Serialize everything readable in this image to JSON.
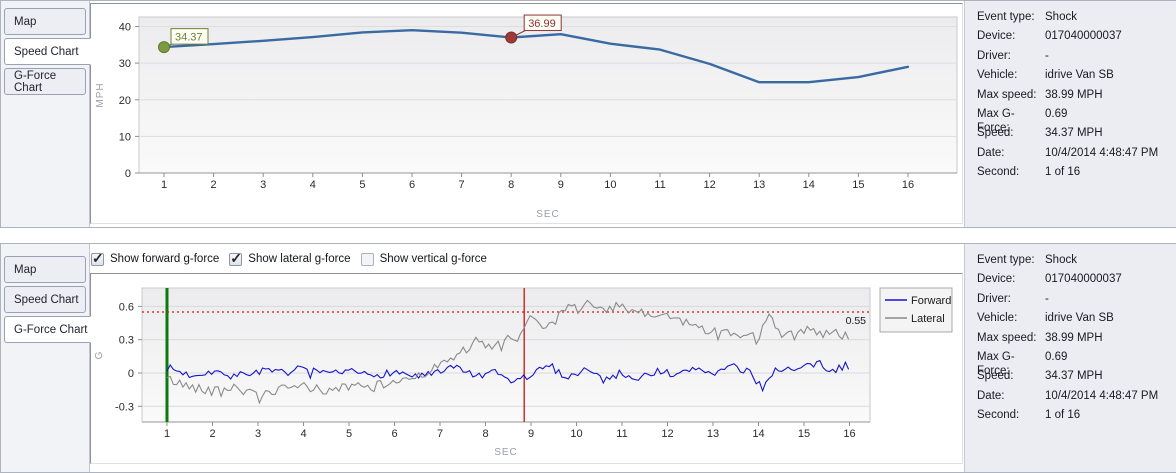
{
  "tabs": [
    "Map",
    "Speed Chart",
    "G-Force Chart"
  ],
  "panels": {
    "top": {
      "name": "speed-chart-panel",
      "active_tab": "Speed Chart"
    },
    "bottom": {
      "name": "gforce-chart-panel",
      "active_tab": "G-Force Chart"
    }
  },
  "checkboxes": [
    {
      "label": "Show forward g-force",
      "checked": true
    },
    {
      "label": "Show lateral g-force",
      "checked": true
    },
    {
      "label": "Show vertical g-force",
      "checked": false
    }
  ],
  "info": {
    "rows": [
      {
        "label": "Event type:",
        "value": "Shock"
      },
      {
        "label": "Device:",
        "value": "017040000037"
      },
      {
        "label": "Driver:",
        "value": "-"
      },
      {
        "label": "Vehicle:",
        "value": "idrive Van SB"
      },
      {
        "label": "Max speed:",
        "value": "38.99 MPH"
      },
      {
        "label": "Max G-Force:",
        "value": "0.69"
      },
      {
        "label": "Speed:",
        "value": "34.37 MPH"
      },
      {
        "label": "Date:",
        "value": "10/4/2014 4:48:47 PM"
      },
      {
        "label": "Second:",
        "value": "1 of 16"
      }
    ]
  },
  "chart_data": [
    {
      "type": "line",
      "title": "Speed Chart",
      "xlabel": "SEC",
      "ylabel": "MPH",
      "x": [
        1,
        2,
        3,
        4,
        5,
        6,
        7,
        8,
        9,
        10,
        11,
        12,
        13,
        14,
        15,
        16
      ],
      "values": [
        34.37,
        35.2,
        36.1,
        37.1,
        38.4,
        38.99,
        38.3,
        36.99,
        37.9,
        35.3,
        33.7,
        29.8,
        24.8,
        24.8,
        26.2,
        29.0
      ],
      "yticks": [
        0,
        10,
        20,
        30,
        40
      ],
      "ylim": [
        0,
        42.6
      ],
      "grid": true,
      "line_color": "#3a6aa4",
      "markers": [
        {
          "x": 1,
          "y": 34.37,
          "label": "34.37",
          "dot_color": "#7d9b40",
          "edge_color": "#5f7a28",
          "text_color": "#6f7f33"
        },
        {
          "x": 8,
          "y": 36.99,
          "label": "36.99",
          "dot_color": "#9c3a38",
          "edge_color": "#7e2d2c",
          "text_color": "#8b3332"
        }
      ]
    },
    {
      "type": "line",
      "title": "G-Force Chart",
      "xlabel": "SEC",
      "ylabel": "G",
      "xticks": [
        1,
        2,
        3,
        4,
        5,
        6,
        7,
        8,
        9,
        10,
        11,
        12,
        13,
        14,
        15,
        16
      ],
      "yticks": [
        -0.3,
        0,
        0.3,
        0.6
      ],
      "ylim": [
        -0.441,
        0.766
      ],
      "grid": true,
      "legend_position": "right",
      "series": [
        {
          "name": "Forward",
          "color": "#1414cc",
          "noise": 0.035,
          "seed": 7,
          "anchors": [
            [
              1,
              0.05
            ],
            [
              1.5,
              -0.02
            ],
            [
              2,
              0.02
            ],
            [
              2.5,
              -0.03
            ],
            [
              3,
              0.02
            ],
            [
              3.5,
              0.0
            ],
            [
              4,
              0.04
            ],
            [
              4.5,
              -0.02
            ],
            [
              5,
              0.01
            ],
            [
              5.5,
              -0.02
            ],
            [
              6,
              0.01
            ],
            [
              6.5,
              -0.03
            ],
            [
              7,
              0.0
            ],
            [
              7.4,
              0.06
            ],
            [
              7.8,
              -0.04
            ],
            [
              8.2,
              0.0
            ],
            [
              8.6,
              -0.08
            ],
            [
              9,
              -0.02
            ],
            [
              9.4,
              0.07
            ],
            [
              9.8,
              -0.04
            ],
            [
              10.2,
              0.04
            ],
            [
              10.6,
              -0.06
            ],
            [
              11,
              0.0
            ],
            [
              11.4,
              -0.05
            ],
            [
              11.8,
              0.03
            ],
            [
              12.2,
              -0.03
            ],
            [
              12.6,
              0.05
            ],
            [
              13,
              0.0
            ],
            [
              13.4,
              0.06
            ],
            [
              13.8,
              0.0
            ],
            [
              14.1,
              -0.13
            ],
            [
              14.4,
              0.05
            ],
            [
              14.8,
              0.02
            ],
            [
              15.2,
              0.08
            ],
            [
              15.6,
              0.02
            ],
            [
              16,
              0.07
            ]
          ]
        },
        {
          "name": "Lateral",
          "color": "#8a8a8a",
          "noise": 0.045,
          "seed": 42,
          "anchors": [
            [
              1,
              -0.05
            ],
            [
              1.3,
              -0.1
            ],
            [
              2,
              -0.16
            ],
            [
              2.5,
              -0.12
            ],
            [
              3,
              -0.22
            ],
            [
              3.4,
              -0.16
            ],
            [
              4,
              -0.12
            ],
            [
              4.5,
              -0.16
            ],
            [
              5,
              -0.12
            ],
            [
              5.5,
              -0.13
            ],
            [
              6,
              -0.08
            ],
            [
              6.5,
              -0.02
            ],
            [
              7,
              0.06
            ],
            [
              7.5,
              0.2
            ],
            [
              7.8,
              0.28
            ],
            [
              8.1,
              0.22
            ],
            [
              8.5,
              0.3
            ],
            [
              8.85,
              0.38
            ],
            [
              9,
              0.52
            ],
            [
              9.3,
              0.42
            ],
            [
              9.6,
              0.5
            ],
            [
              9.9,
              0.62
            ],
            [
              10.1,
              0.55
            ],
            [
              10.3,
              0.66
            ],
            [
              10.6,
              0.55
            ],
            [
              10.9,
              0.6
            ],
            [
              11.2,
              0.55
            ],
            [
              11.6,
              0.52
            ],
            [
              12,
              0.52
            ],
            [
              12.4,
              0.45
            ],
            [
              12.8,
              0.4
            ],
            [
              13.2,
              0.36
            ],
            [
              13.6,
              0.34
            ],
            [
              14,
              0.32
            ],
            [
              14.25,
              0.5
            ],
            [
              14.5,
              0.36
            ],
            [
              14.8,
              0.33
            ],
            [
              15.1,
              0.42
            ],
            [
              15.4,
              0.36
            ],
            [
              15.7,
              0.38
            ],
            [
              16,
              0.3
            ]
          ]
        }
      ],
      "threshold": {
        "value": 0.55,
        "label": "0.55",
        "color": "#d41414",
        "text_color": "#1a1a1a"
      },
      "vlines": [
        {
          "x": 1,
          "color": "#0a7a0a",
          "width": 3
        },
        {
          "x": 8.85,
          "color": "#cc1212",
          "width": 1.3
        }
      ]
    }
  ]
}
